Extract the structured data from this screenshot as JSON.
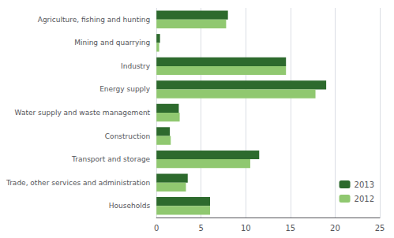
{
  "chart_data": {
    "type": "bar",
    "orientation": "horizontal",
    "categories": [
      "Agriculture, fishing and hunting",
      "Mining and quarrying",
      "Industry",
      "Energy supply",
      "Water supply and waste management",
      "Construction",
      "Transport and storage",
      "Trade, other services and administration",
      "Households"
    ],
    "series": [
      {
        "name": "2013",
        "color": "#2d6a2d",
        "values": [
          8.0,
          0.4,
          14.5,
          19.0,
          2.5,
          1.5,
          11.5,
          3.5,
          6.0
        ]
      },
      {
        "name": "2012",
        "color": "#90c870",
        "values": [
          7.8,
          0.3,
          14.5,
          17.8,
          2.6,
          1.6,
          10.5,
          3.3,
          6.0
        ]
      }
    ],
    "xlim": [
      0,
      25
    ],
    "xticks": [
      0,
      5,
      10,
      15,
      20,
      25
    ],
    "grid": true,
    "legend": "lower right"
  }
}
